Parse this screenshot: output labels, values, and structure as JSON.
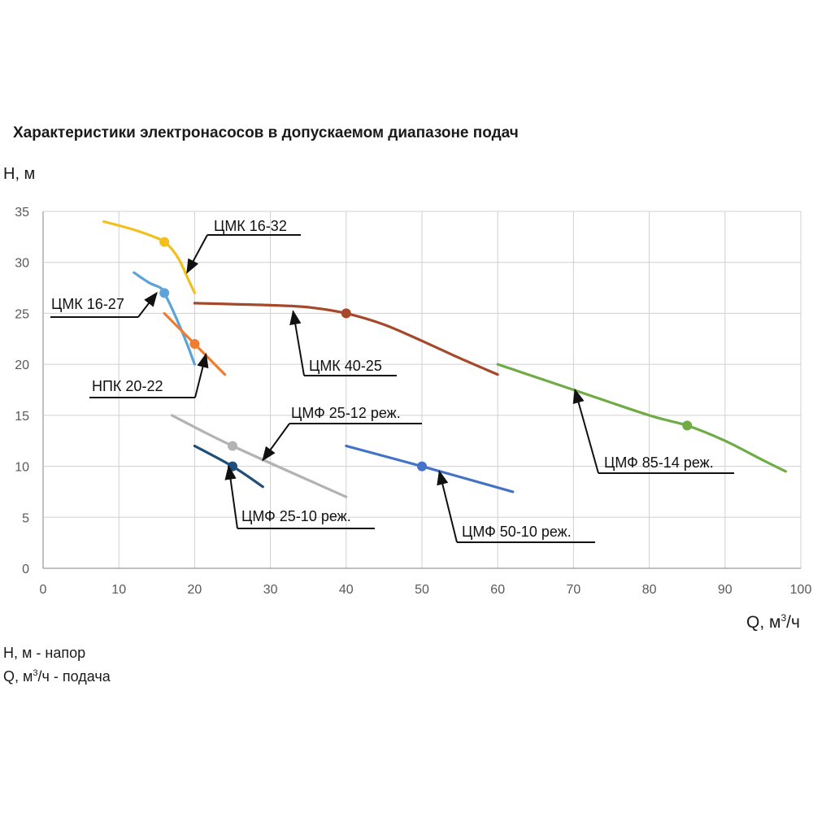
{
  "chart_data": {
    "type": "line",
    "title": "Характеристики электронасосов в допускаемом диапазоне подач",
    "ylabel": "H, м",
    "xlabel": {
      "prefix": "Q,  м",
      "sup": "3",
      "suffix": "/ч"
    },
    "xlim": [
      0,
      100
    ],
    "ylim": [
      0,
      35
    ],
    "xticks": [
      "0",
      "10",
      "20",
      "30",
      "40",
      "50",
      "60",
      "70",
      "80",
      "90",
      "100"
    ],
    "yticks": [
      "0",
      "5",
      "10",
      "15",
      "20",
      "25",
      "30",
      "35"
    ],
    "grid": true,
    "series": [
      {
        "name": "ЦМК 16-32",
        "color": "#f2c01e",
        "x": [
          8,
          12,
          15,
          16,
          17,
          18,
          19,
          20
        ],
        "y": [
          34,
          33.2,
          32.4,
          32,
          31.3,
          30.2,
          28.6,
          27
        ],
        "point": [
          16,
          32
        ]
      },
      {
        "name": "ЦМК 16-27",
        "color": "#5ba3d9",
        "x": [
          12,
          14,
          15.5,
          16,
          17,
          18,
          19,
          20
        ],
        "y": [
          29,
          28,
          27.5,
          27,
          25.5,
          23.8,
          22,
          20
        ],
        "point": [
          16,
          27
        ]
      },
      {
        "name": "НПК 20-22",
        "color": "#ee7d31",
        "x": [
          16,
          20,
          24
        ],
        "y": [
          25,
          22,
          19
        ],
        "point": [
          20,
          22
        ]
      },
      {
        "name": "ЦМК 40-25",
        "color": "#a5492a",
        "x": [
          20,
          25,
          30,
          35,
          40,
          45,
          50,
          55,
          60
        ],
        "y": [
          26,
          25.9,
          25.8,
          25.6,
          25,
          23.9,
          22.3,
          20.6,
          19
        ],
        "point": [
          40,
          25
        ]
      },
      {
        "name": "ЦМФ 85-14 реж.",
        "color": "#6fac46",
        "x": [
          60,
          70,
          80,
          85,
          90,
          95,
          98
        ],
        "y": [
          20,
          17.5,
          15,
          14,
          12.5,
          10.6,
          9.5
        ],
        "point": [
          85,
          14
        ]
      },
      {
        "name": "ЦМФ 25-12 реж.",
        "color": "#b3b3b3",
        "x": [
          17,
          25,
          40
        ],
        "y": [
          15,
          12,
          7
        ],
        "point": [
          25,
          12
        ]
      },
      {
        "name": "ЦМФ 25-10 реж.",
        "color": "#1f4e79",
        "x": [
          20,
          25,
          29
        ],
        "y": [
          12,
          10,
          8
        ],
        "point": [
          25,
          10
        ]
      },
      {
        "name": "ЦМФ 50-10 реж.",
        "color": "#4472c4",
        "x": [
          40,
          50,
          62
        ],
        "y": [
          12,
          10,
          7.5
        ],
        "point": [
          50,
          10
        ]
      }
    ],
    "annotations": [
      {
        "text": "ЦМК 16-32",
        "target": [
          19,
          29
        ]
      },
      {
        "text": "ЦМК 16-27",
        "target": [
          15,
          27
        ]
      },
      {
        "text": "НПК 20-22",
        "target": [
          21.5,
          21
        ]
      },
      {
        "text": "ЦМК 40-25",
        "target": [
          33,
          25.2
        ]
      },
      {
        "text": "ЦМФ 25-12 реж.",
        "target": [
          29,
          10.6
        ]
      },
      {
        "text": "ЦМФ 25-10 реж.",
        "target": [
          24.5,
          10
        ]
      },
      {
        "text": "ЦМФ 50-10 реж.",
        "target": [
          52.3,
          9.5
        ]
      },
      {
        "text": "ЦМФ 85-14 реж.",
        "target": [
          70.2,
          17.5
        ]
      }
    ]
  },
  "legend_notes": [
    {
      "text": "H, м - напор"
    },
    {
      "prefix": "Q, м",
      "sup": "3",
      "suffix": "/ч - подача"
    }
  ]
}
